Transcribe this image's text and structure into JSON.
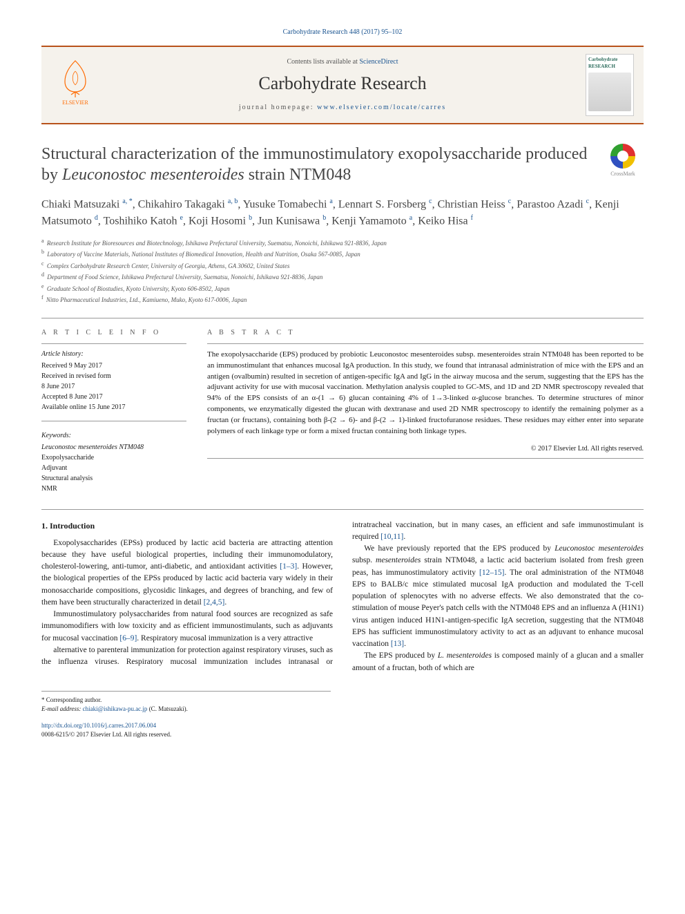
{
  "citation": "Carbohydrate Research 448 (2017) 95–102",
  "banner": {
    "contents_prefix": "Contents lists available at ",
    "contents_link": "ScienceDirect",
    "journal": "Carbohydrate Research",
    "homepage_prefix": "journal homepage: ",
    "homepage_link": "www.elsevier.com/locate/carres",
    "publisher": "ELSEVIER",
    "cover_title": "Carbohydrate RESEARCH"
  },
  "title_html": "Structural characterization of the immunostimulatory exopolysaccharide produced by <em>Leuconostoc mesenteroides</em> strain NTM048",
  "crossmark_label": "CrossMark",
  "authors_html": "Chiaki Matsuzaki <sup>a, *</sup>, Chikahiro Takagaki <sup>a, b</sup>, Yusuke Tomabechi <sup>a</sup>, Lennart S. Forsberg <sup>c</sup>, Christian Heiss <sup>c</sup>, Parastoo Azadi <sup>c</sup>, Kenji Matsumoto <sup>d</sup>, Toshihiko Katoh <sup>e</sup>, Koji Hosomi <sup>b</sup>, Jun Kunisawa <sup>b</sup>, Kenji Yamamoto <sup>a</sup>, Keiko Hisa <sup>f</sup>",
  "affiliations": [
    {
      "sup": "a",
      "text": "Research Institute for Bioresources and Biotechnology, Ishikawa Prefectural University, Suematsu, Nonoichi, Ishikawa 921-8836, Japan"
    },
    {
      "sup": "b",
      "text": "Laboratory of Vaccine Materials, National Institutes of Biomedical Innovation, Health and Nutrition, Osaka 567-0085, Japan"
    },
    {
      "sup": "c",
      "text": "Complex Carbohydrate Research Center, University of Georgia, Athens, GA 30602, United States"
    },
    {
      "sup": "d",
      "text": "Department of Food Science, Ishikawa Prefectural University, Suematsu, Nonoichi, Ishikawa 921-8836, Japan"
    },
    {
      "sup": "e",
      "text": "Graduate School of Biostudies, Kyoto University, Kyoto 606-8502, Japan"
    },
    {
      "sup": "f",
      "text": "Nitto Pharmaceutical Industries, Ltd., Kamiueno, Muko, Kyoto 617-0006, Japan"
    }
  ],
  "article_info": {
    "label": "A R T I C L E   I N F O",
    "history_label": "Article history:",
    "history": [
      "Received 9 May 2017",
      "Received in revised form",
      "8 June 2017",
      "Accepted 8 June 2017",
      "Available online 15 June 2017"
    ],
    "keywords_label": "Keywords:",
    "keywords": [
      "Leuconostoc mesenteroides NTM048",
      "Exopolysaccharide",
      "Adjuvant",
      "Structural analysis",
      "NMR"
    ]
  },
  "abstract": {
    "label": "A B S T R A C T",
    "text": "The exopolysaccharide (EPS) produced by probiotic Leuconostoc mesenteroides subsp. mesenteroides strain NTM048 has been reported to be an immunostimulant that enhances mucosal IgA production. In this study, we found that intranasal administration of mice with the EPS and an antigen (ovalbumin) resulted in secretion of antigen-specific IgA and IgG in the airway mucosa and the serum, suggesting that the EPS has the adjuvant activity for use with mucosal vaccination. Methylation analysis coupled to GC-MS, and 1D and 2D NMR spectroscopy revealed that 94% of the EPS consists of an α-(1 → 6) glucan containing 4% of 1→3-linked α-glucose branches. To determine structures of minor components, we enzymatically digested the glucan with dextranase and used 2D NMR spectroscopy to identify the remaining polymer as a fructan (or fructans), containing both β-(2 → 6)- and β-(2 → 1)-linked fructofuranose residues. These residues may either enter into separate polymers of each linkage type or form a mixed fructan containing both linkage types.",
    "copyright": "© 2017 Elsevier Ltd. All rights reserved."
  },
  "introduction": {
    "heading": "1. Introduction",
    "p1_html": "Exopolysaccharides (EPSs) produced by lactic acid bacteria are attracting attention because they have useful biological properties, including their immunomodulatory, cholesterol-lowering, anti-tumor, anti-diabetic, and antioxidant activities <span class='ref'>[1–3]</span>. However, the biological properties of the EPSs produced by lactic acid bacteria vary widely in their monosaccharide compositions, glycosidic linkages, and degrees of branching, and few of them have been structurally characterized in detail <span class='ref'>[2,4,5]</span>.",
    "p2_html": "Immunostimulatory polysaccharides from natural food sources are recognized as safe immunomodifiers with low toxicity and as efficient immunostimulants, such as adjuvants for mucosal vaccination <span class='ref'>[6–9]</span>. Respiratory mucosal immunization is a very attractive",
    "p3_html": "alternative to parenteral immunization for protection against respiratory viruses, such as the influenza viruses. Respiratory mucosal immunization includes intranasal or intratracheal vaccination, but in many cases, an efficient and safe immunostimulant is required <span class='ref'>[10,11]</span>.",
    "p4_html": "We have previously reported that the EPS produced by <em>Leuconostoc mesenteroides</em> subsp. <em>mesenteroides</em> strain NTM048, a lactic acid bacterium isolated from fresh green peas, has immunostimulatory activity <span class='ref'>[12–15]</span>. The oral administration of the NTM048 EPS to BALB/c mice stimulated mucosal IgA production and modulated the T-cell population of splenocytes with no adverse effects. We also demonstrated that the co-stimulation of mouse Peyer's patch cells with the NTM048 EPS and an influenza A (H1N1) virus antigen induced H1N1-antigen-specific IgA secretion, suggesting that the NTM048 EPS has sufficient immunostimulatory activity to act as an adjuvant to enhance mucosal vaccination <span class='ref'>[13]</span>.",
    "p5_html": "The EPS produced by <em>L. mesenteroides</em> is composed mainly of a glucan and a smaller amount of a fructan, both of which are"
  },
  "footnotes": {
    "corr": "* Corresponding author.",
    "email_label": "E-mail address: ",
    "email": "chiaki@ishikawa-pu.ac.jp",
    "email_suffix": " (C. Matsuzaki)."
  },
  "footer": {
    "doi": "http://dx.doi.org/10.1016/j.carres.2017.06.004",
    "issn_line": "0008-6215/© 2017 Elsevier Ltd. All rights reserved."
  },
  "colors": {
    "link": "#1a5490",
    "banner_border": "#b8521a",
    "banner_bg": "#f5f2ec",
    "elsevier_orange": "#ff6a00"
  }
}
